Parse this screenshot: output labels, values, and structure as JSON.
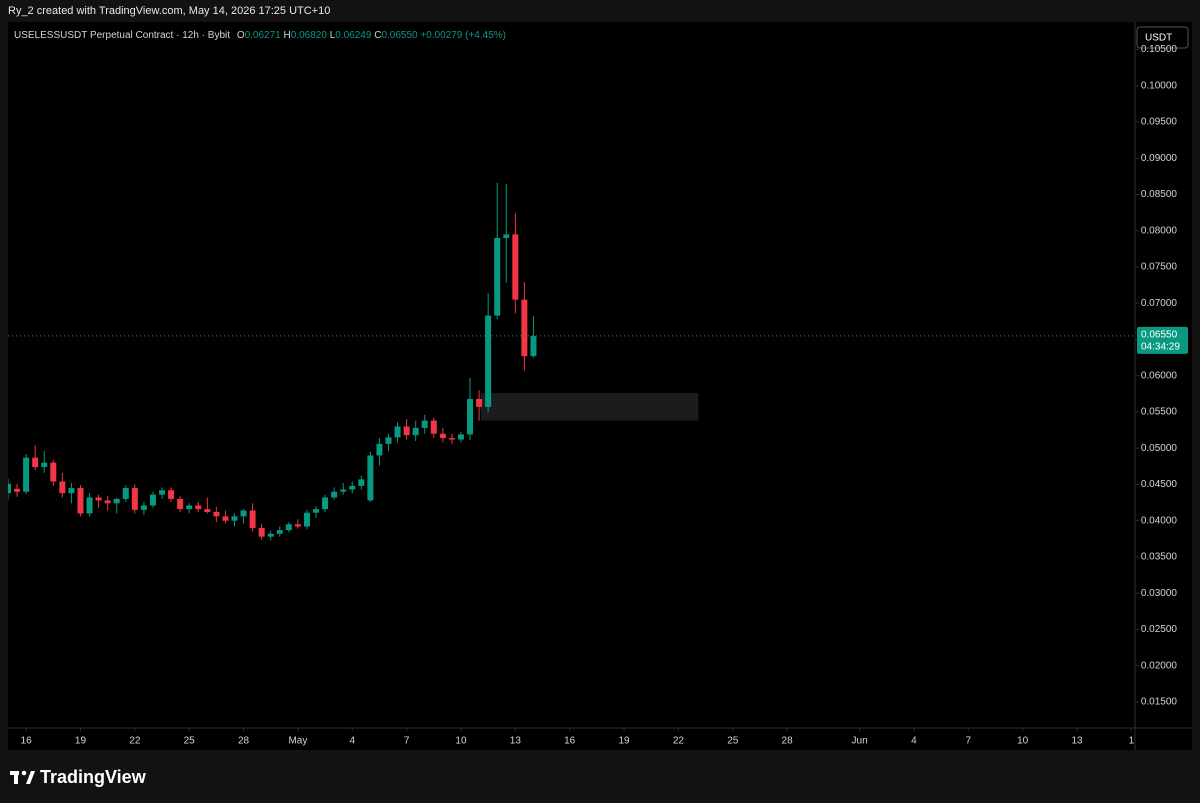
{
  "header": {
    "caption": "Ry_2 created with TradingView.com, May 14, 2026 17:25 UTC+10"
  },
  "chart_data": {
    "type": "candlestick",
    "title": "USELESSUSDT Perpetual Contract · 12h · Bybit",
    "legend": {
      "o_label": "O",
      "open": "0.06271",
      "h_label": "H",
      "high": "0.06820",
      "l_label": "L",
      "low": "0.06249",
      "c_label": "C",
      "close": "0.06550",
      "change": "+0.00279 (+4.45%)"
    },
    "currency": "USDT",
    "last_price": "0.06550",
    "countdown": "04:34:29",
    "watermark": "TradingView",
    "up_color": "#089981",
    "down_color": "#f23645",
    "x": [
      -1,
      -0.5,
      0,
      0.5,
      1,
      1.5,
      2,
      2.5,
      3,
      3.5,
      4,
      4.5,
      5,
      5.5,
      6,
      6.5,
      7,
      7.5,
      8,
      8.5,
      9,
      9.5,
      10,
      10.5,
      11,
      11.5,
      12,
      12.5,
      13,
      13.5,
      14,
      14.5,
      15,
      15.5,
      16,
      16.5,
      17,
      17.5,
      18,
      18.5,
      19,
      19.5,
      20,
      20.5,
      21,
      21.5,
      22,
      22.5,
      23,
      23.5,
      24,
      24.5,
      25,
      25.5,
      26,
      26.5,
      27,
      27.5,
      28
    ],
    "open": [
      0.0438,
      0.0444,
      0.044,
      0.0487,
      0.0474,
      0.048,
      0.0454,
      0.0438,
      0.0445,
      0.041,
      0.0432,
      0.0428,
      0.0424,
      0.043,
      0.0445,
      0.0415,
      0.0421,
      0.0436,
      0.0442,
      0.043,
      0.0416,
      0.0421,
      0.0416,
      0.0412,
      0.0406,
      0.04,
      0.0406,
      0.0414,
      0.039,
      0.0378,
      0.0382,
      0.0387,
      0.0395,
      0.0392,
      0.0411,
      0.0416,
      0.0432,
      0.044,
      0.0443,
      0.0448,
      0.0428,
      0.049,
      0.0506,
      0.0515,
      0.053,
      0.0518,
      0.0528,
      0.0538,
      0.052,
      0.0514,
      0.0512,
      0.0519,
      0.0568,
      0.0557,
      0.0683,
      0.079,
      0.0795,
      0.0705,
      0.06271
    ],
    "high": [
      0.0458,
      0.0451,
      0.0492,
      0.0504,
      0.0496,
      0.0484,
      0.0466,
      0.0452,
      0.0449,
      0.0438,
      0.0436,
      0.0434,
      0.0432,
      0.0449,
      0.045,
      0.0426,
      0.044,
      0.0446,
      0.0446,
      0.0434,
      0.0424,
      0.0426,
      0.0432,
      0.0419,
      0.0414,
      0.041,
      0.0416,
      0.0424,
      0.0396,
      0.0386,
      0.0392,
      0.0398,
      0.0402,
      0.0415,
      0.042,
      0.0436,
      0.0446,
      0.0452,
      0.0454,
      0.0462,
      0.0495,
      0.0514,
      0.052,
      0.0536,
      0.054,
      0.0538,
      0.0546,
      0.0542,
      0.0528,
      0.052,
      0.0522,
      0.0597,
      0.058,
      0.0714,
      0.0866,
      0.0865,
      0.0824,
      0.0729,
      0.0682
    ],
    "low": [
      0.0429,
      0.0433,
      0.0437,
      0.047,
      0.0466,
      0.0448,
      0.0432,
      0.0424,
      0.0406,
      0.0406,
      0.0418,
      0.0414,
      0.041,
      0.0426,
      0.041,
      0.0408,
      0.0418,
      0.043,
      0.0426,
      0.0412,
      0.041,
      0.0412,
      0.041,
      0.0398,
      0.0396,
      0.0392,
      0.0396,
      0.0385,
      0.0374,
      0.0373,
      0.0378,
      0.0384,
      0.0389,
      0.0388,
      0.0404,
      0.0412,
      0.0429,
      0.0436,
      0.0438,
      0.0443,
      0.0426,
      0.0476,
      0.0496,
      0.0508,
      0.0512,
      0.051,
      0.052,
      0.0514,
      0.0508,
      0.0506,
      0.0508,
      0.0511,
      0.0538,
      0.055,
      0.0678,
      0.0728,
      0.0686,
      0.0607,
      0.06249
    ],
    "close": [
      0.0451,
      0.044,
      0.0487,
      0.0474,
      0.048,
      0.0454,
      0.0438,
      0.0445,
      0.041,
      0.0432,
      0.0428,
      0.0424,
      0.043,
      0.0445,
      0.0415,
      0.0421,
      0.0436,
      0.0442,
      0.043,
      0.0416,
      0.0421,
      0.0416,
      0.0412,
      0.0406,
      0.04,
      0.0406,
      0.0414,
      0.039,
      0.0378,
      0.0382,
      0.0387,
      0.0395,
      0.0392,
      0.0411,
      0.0416,
      0.0432,
      0.044,
      0.0443,
      0.0448,
      0.0457,
      0.049,
      0.0506,
      0.0515,
      0.053,
      0.0518,
      0.0528,
      0.0538,
      0.052,
      0.0514,
      0.0512,
      0.0519,
      0.0568,
      0.0557,
      0.0683,
      0.079,
      0.0795,
      0.0705,
      0.0627,
      0.0655
    ],
    "box": {
      "xlim": [
        25.1,
        37.1
      ],
      "ylim": [
        0.0538,
        0.0576
      ],
      "color": "#1c1c1e"
    },
    "xlim": [
      -1,
      61.2
    ],
    "xticks": [
      {
        "value": 0,
        "label": "16"
      },
      {
        "value": 3,
        "label": "19"
      },
      {
        "value": 6,
        "label": "22"
      },
      {
        "value": 9,
        "label": "25"
      },
      {
        "value": 12,
        "label": "28"
      },
      {
        "value": 15,
        "label": "May"
      },
      {
        "value": 18,
        "label": "4"
      },
      {
        "value": 21,
        "label": "7"
      },
      {
        "value": 24,
        "label": "10"
      },
      {
        "value": 27,
        "label": "13"
      },
      {
        "value": 30,
        "label": "16"
      },
      {
        "value": 33,
        "label": "19"
      },
      {
        "value": 36,
        "label": "22"
      },
      {
        "value": 39,
        "label": "25"
      },
      {
        "value": 42,
        "label": "28"
      },
      {
        "value": 46,
        "label": "Jun"
      },
      {
        "value": 49,
        "label": "4"
      },
      {
        "value": 52,
        "label": "7"
      },
      {
        "value": 55,
        "label": "10"
      },
      {
        "value": 58,
        "label": "13"
      },
      {
        "value": 61,
        "label": "1"
      }
    ],
    "ylim": [
      0.0114,
      0.1088
    ],
    "yticks": [
      {
        "value": 0.015,
        "label": "0.01500"
      },
      {
        "value": 0.02,
        "label": "0.02000"
      },
      {
        "value": 0.025,
        "label": "0.02500"
      },
      {
        "value": 0.03,
        "label": "0.03000"
      },
      {
        "value": 0.035,
        "label": "0.03500"
      },
      {
        "value": 0.04,
        "label": "0.04000"
      },
      {
        "value": 0.045,
        "label": "0.04500"
      },
      {
        "value": 0.05,
        "label": "0.05000"
      },
      {
        "value": 0.055,
        "label": "0.05500"
      },
      {
        "value": 0.06,
        "label": "0.06000"
      },
      {
        "value": 0.065,
        "label": "0.06500"
      },
      {
        "value": 0.07,
        "label": "0.07000"
      },
      {
        "value": 0.075,
        "label": "0.07500"
      },
      {
        "value": 0.08,
        "label": "0.08000"
      },
      {
        "value": 0.085,
        "label": "0.08500"
      },
      {
        "value": 0.09,
        "label": "0.09000"
      },
      {
        "value": 0.095,
        "label": "0.09500"
      },
      {
        "value": 0.1,
        "label": "0.10000"
      },
      {
        "value": 0.105,
        "label": "0.10500"
      }
    ]
  }
}
